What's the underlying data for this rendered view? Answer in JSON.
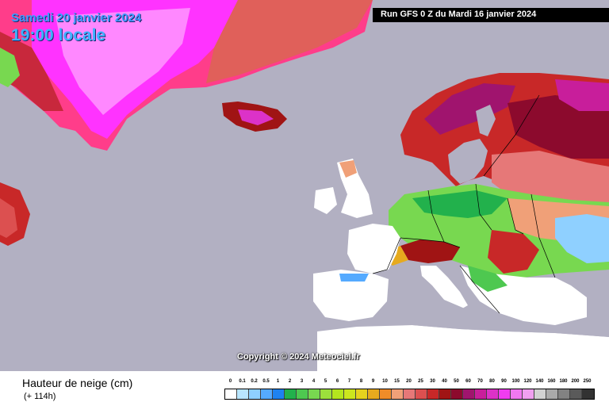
{
  "header": {
    "date": "Samedi 20 janvier 2024",
    "time": "19:00 locale",
    "run": "Run GFS 0 Z du Mardi 16 janvier 2024"
  },
  "copyright": "Copyright © 2024 Meteociel.fr",
  "footer": {
    "variable": "Hauteur de neige (cm)",
    "lead_time": "(+ 114h)"
  },
  "colors": {
    "ocean": "#b2b0c2",
    "land": "#ffffff"
  },
  "legend": {
    "labels": [
      "0",
      "0.1",
      "0.2",
      "0.5",
      "1",
      "2",
      "3",
      "4",
      "5",
      "6",
      "7",
      "8",
      "9",
      "10",
      "15",
      "20",
      "25",
      "30",
      "40",
      "50",
      "60",
      "70",
      "80",
      "90",
      "100",
      "120",
      "140",
      "160",
      "180",
      "200",
      "250"
    ],
    "colors": [
      "#ffffff",
      "#b9e6ff",
      "#8fd0ff",
      "#55aaff",
      "#1e82f0",
      "#22b14c",
      "#4ec850",
      "#78d850",
      "#9ce03c",
      "#b4e61e",
      "#cce61e",
      "#e6d21e",
      "#e6aa1e",
      "#f08c28",
      "#f0a078",
      "#e67878",
      "#dc5050",
      "#c82828",
      "#a01414",
      "#8c0a2d",
      "#a0146e",
      "#c81e9b",
      "#dc32c8",
      "#f03cf0",
      "#f078f0",
      "#f0a0f0",
      "#d2d2d2",
      "#aaaaaa",
      "#828282",
      "#5a5a5a",
      "#323232"
    ]
  }
}
